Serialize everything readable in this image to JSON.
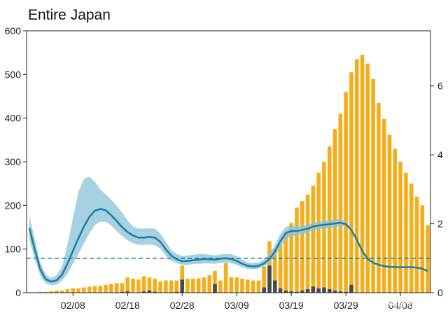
{
  "chart_data": {
    "type": "bar",
    "title": "Entire Japan",
    "xlabel": "",
    "ylabel": "",
    "ylabel_right": "",
    "ylim": [
      0,
      600
    ],
    "ylim_right": [
      0,
      7.6
    ],
    "yticks": [
      "0",
      "100",
      "200",
      "300",
      "400",
      "500",
      "600"
    ],
    "yticks_right": [
      "0",
      "2",
      "4",
      "6"
    ],
    "x_start": "01/31",
    "x_end": "04/12",
    "xticks": [
      "02/08",
      "02/18",
      "02/28",
      "03/09",
      "03/19",
      "03/29",
      "04/08"
    ],
    "reference_line": {
      "axis": "right",
      "value": 1,
      "style": "dashed"
    },
    "grid": false,
    "legend": "none",
    "colors": {
      "bars": "#f4ae1b",
      "dark_bars": "#4a4a4a",
      "line": "#1f7fa3",
      "band": "#8cc4d9",
      "reference": "#1f7fa3"
    },
    "series": [
      {
        "kind": "bar",
        "axis": "left",
        "values": [
          0,
          0,
          2,
          2,
          3,
          5,
          5,
          8,
          10,
          10,
          12,
          14,
          15,
          16,
          18,
          20,
          22,
          22,
          35,
          32,
          30,
          38,
          35,
          32,
          26,
          28,
          28,
          28,
          62,
          32,
          32,
          33,
          35,
          40,
          50,
          28,
          68,
          36,
          35,
          32,
          30,
          28,
          28,
          60,
          118,
          100,
          112,
          140,
          160,
          195,
          210,
          225,
          245,
          275,
          300,
          335,
          375,
          410,
          460,
          505,
          535,
          545,
          525,
          490,
          435,
          398,
          362,
          330,
          300,
          275,
          250,
          220,
          200,
          155
        ]
      },
      {
        "kind": "bar",
        "axis": "left",
        "values": [
          0,
          0,
          0,
          0,
          0,
          0,
          0,
          0,
          0,
          0,
          0,
          0,
          0,
          0,
          0,
          0,
          0,
          2,
          3,
          0,
          0,
          3,
          5,
          2,
          0,
          0,
          0,
          2,
          30,
          0,
          0,
          0,
          0,
          0,
          20,
          0,
          0,
          0,
          0,
          0,
          0,
          0,
          0,
          12,
          62,
          28,
          10,
          5,
          3,
          2,
          5,
          8,
          14,
          10,
          12,
          8,
          5,
          3,
          2,
          18,
          0,
          0,
          0,
          0,
          0,
          0,
          0,
          0,
          0,
          0,
          0,
          0,
          0,
          0
        ]
      },
      {
        "kind": "line",
        "axis": "right",
        "values": [
          1.88,
          1.25,
          0.68,
          0.39,
          0.32,
          0.36,
          0.52,
          0.85,
          1.22,
          1.58,
          1.92,
          2.2,
          2.38,
          2.43,
          2.39,
          2.25,
          2.08,
          1.9,
          1.76,
          1.66,
          1.6,
          1.6,
          1.62,
          1.6,
          1.48,
          1.26,
          1.08,
          0.97,
          0.91,
          0.92,
          0.94,
          0.96,
          0.98,
          0.97,
          0.96,
          0.99,
          1.0,
          0.98,
          0.92,
          0.84,
          0.78,
          0.76,
          0.78,
          0.85,
          0.98,
          1.2,
          1.5,
          1.73,
          1.79,
          1.79,
          1.82,
          1.86,
          1.92,
          1.95,
          1.97,
          1.99,
          2.01,
          2.03,
          1.99,
          1.82,
          1.54,
          1.21,
          0.98,
          0.87,
          0.81,
          0.77,
          0.75,
          0.74,
          0.74,
          0.74,
          0.74,
          0.73,
          0.7,
          0.62
        ]
      },
      {
        "kind": "band_upper",
        "axis": "right",
        "values": [
          2.25,
          1.55,
          0.88,
          0.52,
          0.43,
          0.5,
          0.76,
          1.4,
          2.18,
          2.93,
          3.3,
          3.37,
          3.22,
          3.0,
          2.85,
          2.7,
          2.52,
          2.32,
          2.1,
          1.92,
          1.86,
          1.86,
          1.87,
          1.86,
          1.72,
          1.48,
          1.24,
          1.13,
          1.06,
          1.08,
          1.1,
          1.12,
          1.12,
          1.1,
          1.08,
          1.11,
          1.12,
          1.12,
          1.06,
          0.96,
          0.88,
          0.86,
          0.88,
          0.97,
          1.12,
          1.39,
          1.7,
          1.91,
          1.95,
          1.93,
          1.95,
          1.98,
          2.03,
          2.06,
          2.08,
          2.11,
          2.13,
          2.13,
          2.06,
          1.86,
          1.56,
          1.23,
          1.0,
          0.88,
          0.82,
          0.78,
          0.76,
          0.75,
          0.75,
          0.75,
          0.75,
          0.74,
          0.71,
          0.63
        ]
      },
      {
        "kind": "band_lower",
        "axis": "right",
        "values": [
          1.55,
          0.98,
          0.5,
          0.27,
          0.22,
          0.24,
          0.35,
          0.55,
          0.85,
          1.12,
          1.43,
          1.72,
          1.96,
          2.06,
          2.06,
          1.95,
          1.79,
          1.64,
          1.52,
          1.44,
          1.39,
          1.39,
          1.4,
          1.38,
          1.28,
          1.08,
          0.93,
          0.86,
          0.81,
          0.81,
          0.83,
          0.84,
          0.85,
          0.85,
          0.84,
          0.87,
          0.88,
          0.86,
          0.81,
          0.74,
          0.69,
          0.68,
          0.7,
          0.76,
          0.86,
          1.05,
          1.3,
          1.55,
          1.64,
          1.65,
          1.69,
          1.74,
          1.81,
          1.84,
          1.86,
          1.88,
          1.9,
          1.93,
          1.93,
          1.78,
          1.52,
          1.19,
          0.96,
          0.86,
          0.8,
          0.76,
          0.74,
          0.73,
          0.73,
          0.73,
          0.73,
          0.72,
          0.69,
          0.61
        ]
      }
    ]
  },
  "watermark": "头条 @神居秒算"
}
